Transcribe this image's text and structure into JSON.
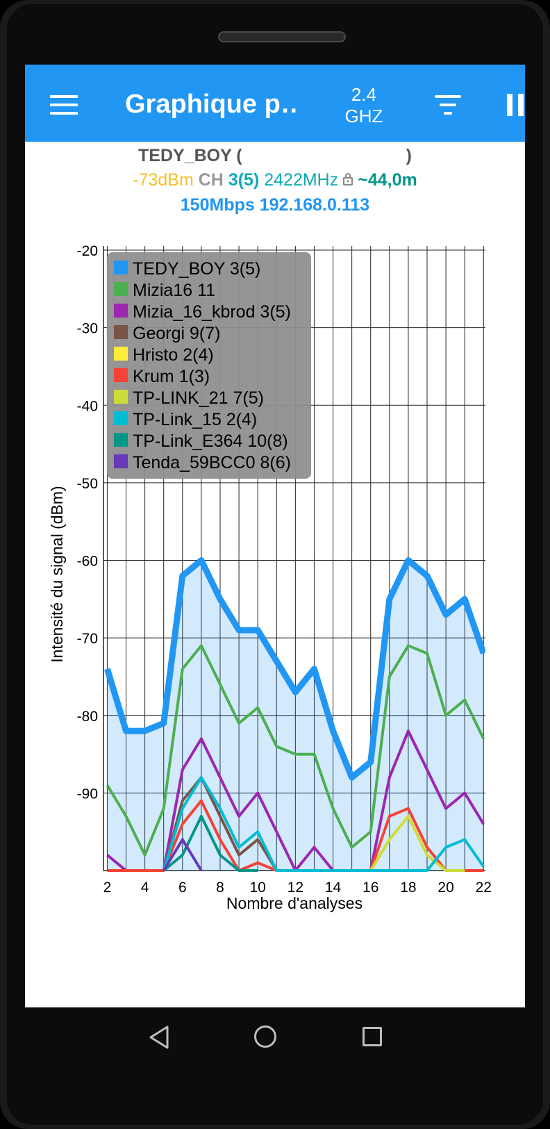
{
  "appbar": {
    "title": "Graphique p…",
    "band_line1": "2.4",
    "band_line2": "GHZ",
    "menu_icon": "hamburger-menu-icon",
    "filter_icon": "filter-icon",
    "pause_icon": "pause-icon"
  },
  "connection": {
    "ssid": "TEDY_BOY",
    "open_paren": "(",
    "close_paren": ")",
    "signal": "-73dBm",
    "ch_label": "CH",
    "channel": "3(5)",
    "frequency": "2422MHz",
    "distance": "~44,0m",
    "speed_ip": "150Mbps 192.168.0.113",
    "lock_icon": "lock-icon",
    "colors": {
      "signal": "#f3c12b",
      "channel": "#10a9b5",
      "distance": "#009688",
      "speed": "#2196f3"
    }
  },
  "chart_data": {
    "type": "line",
    "title": "",
    "xlabel": "Nombre d'analyses",
    "ylabel": "Intensité du signal (dBm)",
    "ylim": [
      -100,
      -20
    ],
    "xlim": [
      1.8,
      22.1
    ],
    "yticks": [
      "-20",
      "-30",
      "-40",
      "-50",
      "-60",
      "-70",
      "-80",
      "-90"
    ],
    "xticks": [
      "2",
      "4",
      "6",
      "8",
      "10",
      "12",
      "14",
      "16",
      "18",
      "20",
      "22"
    ],
    "grid": true,
    "legend_position": "top-left",
    "series": [
      {
        "name": "TEDY_BOY 3(5)",
        "color": "#2196f3",
        "highlight": true,
        "x": [
          2,
          3,
          4,
          5,
          6,
          7,
          8,
          9,
          10,
          11,
          12,
          13,
          14,
          15,
          16,
          17,
          18,
          19,
          20,
          21,
          22
        ],
        "y": [
          -74,
          -82,
          -82,
          -81,
          -62,
          -60,
          -65,
          -69,
          -69,
          -73,
          -77,
          -74,
          -82,
          -88,
          -86,
          -65,
          -60,
          -62,
          -67,
          -65,
          -72
        ]
      },
      {
        "name": "Mizia16 11",
        "color": "#4caf50",
        "x": [
          2,
          3,
          4,
          5,
          6,
          7,
          8,
          9,
          10,
          11,
          12,
          13,
          14,
          15,
          16,
          17,
          18,
          19,
          20,
          21,
          22
        ],
        "y": [
          -89,
          -93,
          -98,
          -92,
          -74,
          -71,
          -76,
          -81,
          -79,
          -84,
          -85,
          -85,
          -92,
          -97,
          -95,
          -75,
          -71,
          -72,
          -80,
          -78,
          -83
        ]
      },
      {
        "name": "Mizia_16_kbrod 3(5)",
        "color": "#9c27b0",
        "x": [
          2,
          3,
          4,
          5,
          6,
          7,
          8,
          9,
          10,
          11,
          12,
          13,
          14,
          15,
          16,
          17,
          18,
          19,
          20,
          21,
          22
        ],
        "y": [
          -98,
          -100,
          -100,
          -100,
          -87,
          -83,
          -88,
          -93,
          -90,
          -95,
          -100,
          -97,
          -100,
          -100,
          -100,
          -88,
          -82,
          -87,
          -92,
          -90,
          -94
        ]
      },
      {
        "name": "Georgi 9(7)",
        "color": "#795548",
        "x": [
          5,
          6,
          7,
          8,
          9,
          10,
          11
        ],
        "y": [
          -100,
          -91,
          -88,
          -93,
          -98,
          -96,
          -100
        ]
      },
      {
        "name": "Hristo 2(4)",
        "color": "#ffeb3b",
        "x": [
          12,
          13,
          14,
          15,
          16,
          17,
          18,
          19,
          20,
          21
        ],
        "y": [
          -100,
          -100,
          -100,
          -100,
          -100,
          -96,
          -93,
          -98,
          -100,
          -100
        ]
      },
      {
        "name": "Krum 1(3)",
        "color": "#f44336",
        "x": [
          2,
          3,
          4,
          5,
          6,
          7,
          8,
          9,
          10,
          11,
          12,
          13,
          14,
          15,
          16,
          17,
          18,
          19,
          20,
          21,
          22
        ],
        "y": [
          -100,
          -100,
          -100,
          -100,
          -94,
          -91,
          -96,
          -100,
          -99,
          -100,
          -100,
          -100,
          -100,
          -100,
          -100,
          -93,
          -92,
          -97,
          -100,
          -100,
          -100
        ]
      },
      {
        "name": "TP-LINK_21 7(5)",
        "color": "#cddc39",
        "x": [
          16,
          17,
          18,
          19,
          20,
          21
        ],
        "y": [
          -100,
          -96,
          -93,
          -98,
          -100,
          -100
        ]
      },
      {
        "name": "TP-Link_15 2(4)",
        "color": "#00bcd4",
        "x": [
          5,
          6,
          7,
          8,
          9,
          10,
          11,
          19,
          20,
          21,
          22
        ],
        "y": [
          -100,
          -92,
          -88,
          -92,
          -97,
          -95,
          -100,
          -100,
          -97,
          -96,
          -99.5
        ]
      },
      {
        "name": "TP-Link_E364 10(8)",
        "color": "#009688",
        "x": [
          5,
          6,
          7,
          8,
          9,
          10
        ],
        "y": [
          -100,
          -98,
          -93,
          -98,
          -100,
          -100
        ]
      },
      {
        "name": "Tenda_59BCC0 8(6)",
        "color": "#673ab7",
        "x": [
          5,
          6,
          7
        ],
        "y": [
          -100,
          -96,
          -100
        ]
      }
    ]
  },
  "navbar": {
    "back_icon": "back-triangle-icon",
    "home_icon": "home-circle-icon",
    "recent_icon": "recent-apps-square-icon"
  }
}
